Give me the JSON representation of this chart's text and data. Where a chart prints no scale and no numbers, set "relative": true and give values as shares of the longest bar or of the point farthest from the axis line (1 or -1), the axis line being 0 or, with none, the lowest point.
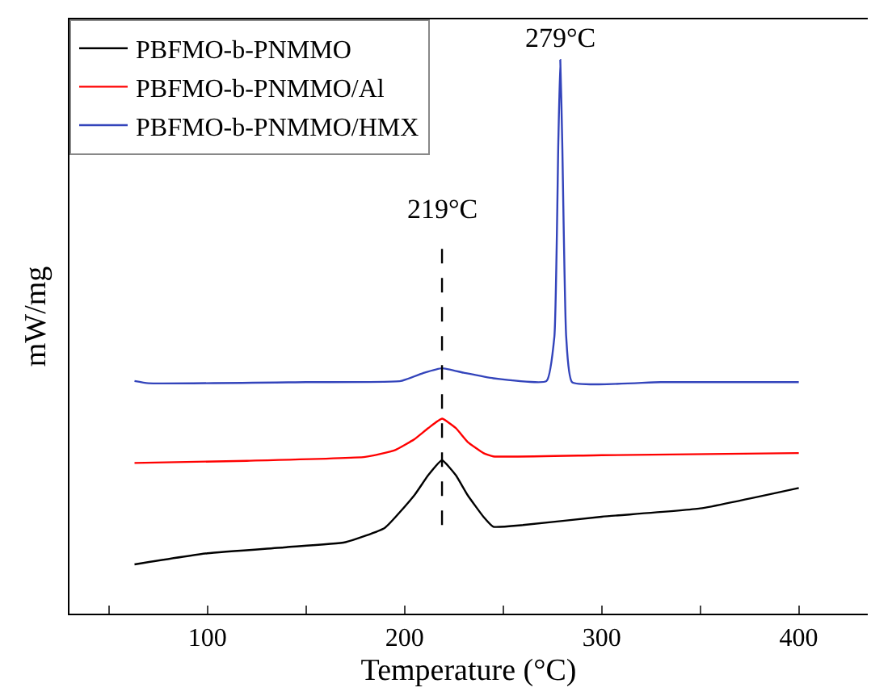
{
  "chart_data": {
    "type": "line",
    "relative": true,
    "xlabel": "Temperature (°C)",
    "ylabel": "mW/mg",
    "xlim": [
      30,
      435
    ],
    "xticks": [
      {
        "value": 50,
        "label": null
      },
      100,
      {
        "value": 150,
        "label": null
      },
      200,
      {
        "value": 250,
        "label": null
      },
      300,
      {
        "value": 350,
        "label": null
      },
      400
    ],
    "legend": "top left",
    "marker": "none",
    "line_style": "solid",
    "series": [
      {
        "name": "PBFMO-b-PNMMO",
        "color": "#000000",
        "x": [
          63,
          100,
          140,
          170,
          190,
          205,
          212,
          219,
          226,
          232,
          240,
          245,
          260,
          300,
          350,
          400
        ],
        "values": [
          0.089,
          0.109,
          0.12,
          0.129,
          0.155,
          0.214,
          0.25,
          0.277,
          0.25,
          0.214,
          0.175,
          0.157,
          0.16,
          0.175,
          0.19,
          0.227
        ]
      },
      {
        "name": "PBFMO-b-PNMMO/Al",
        "color": "#ff0000",
        "x": [
          63,
          120,
          180,
          195,
          205,
          212,
          219,
          226,
          232,
          240,
          245,
          300,
          400
        ],
        "values": [
          0.272,
          0.276,
          0.283,
          0.295,
          0.315,
          0.335,
          0.352,
          0.335,
          0.31,
          0.29,
          0.284,
          0.286,
          0.29
        ]
      },
      {
        "name": "PBFMO-b-PNMMO/HMX",
        "color": "#3344bb",
        "x": [
          63,
          70,
          150,
          198,
          210,
          219,
          230,
          245,
          272,
          276,
          278,
          279,
          280,
          282,
          285,
          330,
          400
        ],
        "values": [
          0.42,
          0.416,
          0.418,
          0.42,
          0.435,
          0.443,
          0.435,
          0.425,
          0.42,
          0.5,
          0.85,
          1.0,
          0.85,
          0.5,
          0.418,
          0.418,
          0.418
        ]
      }
    ],
    "ref_lines": [
      {
        "axis": "x",
        "value": 219,
        "line_style": "dashed",
        "color": "#000000"
      }
    ],
    "annotations": [
      "219°C",
      "279°C"
    ]
  }
}
